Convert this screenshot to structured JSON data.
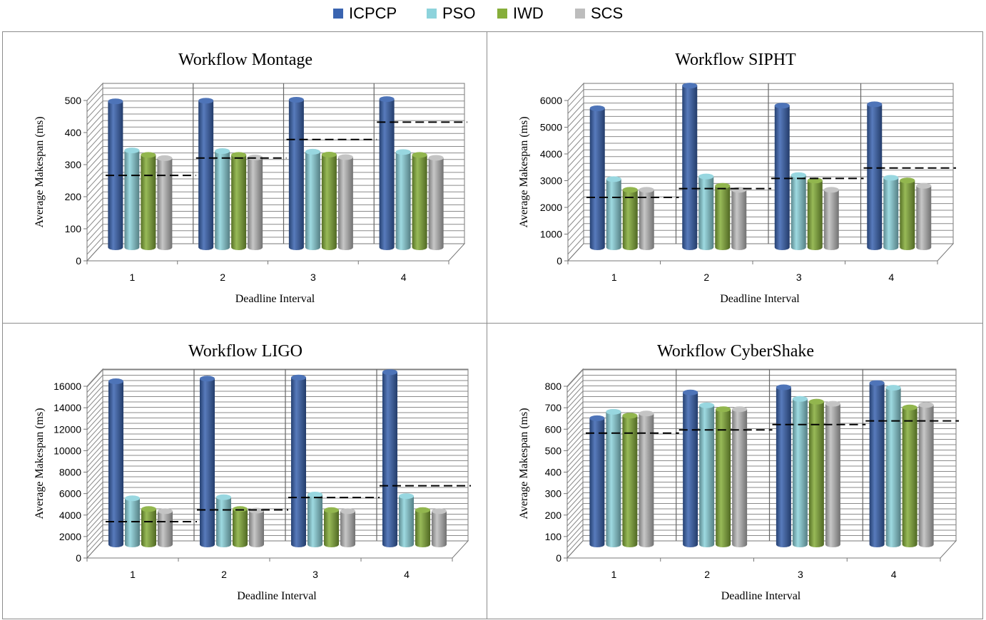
{
  "legend": {
    "items": [
      {
        "label": "ICPCP",
        "color": "#3a64b0"
      },
      {
        "label": "PSO",
        "color": "#8dd3dc"
      },
      {
        "label": "IWD",
        "color": "#86ae3a"
      },
      {
        "label": "SCS",
        "color": "#bdbdbd"
      }
    ]
  },
  "chart_data": [
    {
      "type": "bar",
      "title": "Workflow Montage",
      "xlabel": "Deadline Interval",
      "ylabel": "Average Makespan (ms)",
      "categories": [
        "1",
        "2",
        "3",
        "4"
      ],
      "ylim": [
        0,
        500
      ],
      "yticks": [
        0,
        100,
        200,
        300,
        400,
        500
      ],
      "series": [
        {
          "name": "ICPCP",
          "values": [
            455,
            457,
            460,
            462
          ]
        },
        {
          "name": "PSO",
          "values": [
            302,
            300,
            298,
            297
          ]
        },
        {
          "name": "IWD",
          "values": [
            288,
            288,
            289,
            288
          ]
        },
        {
          "name": "SCS",
          "values": [
            278,
            280,
            281,
            279
          ]
        }
      ],
      "deadlines": [
        262,
        316,
        374,
        428
      ]
    },
    {
      "type": "bar",
      "title": "Workflow SIPHT",
      "xlabel": "Deadline Interval",
      "ylabel": "Average Makespan (ms)",
      "categories": [
        "1",
        "2",
        "3",
        "4"
      ],
      "ylim": [
        0,
        6000
      ],
      "yticks": [
        0,
        1000,
        2000,
        3000,
        4000,
        5000,
        6000
      ],
      "series": [
        {
          "name": "ICPCP",
          "values": [
            5200,
            6050,
            5300,
            5350
          ]
        },
        {
          "name": "PSO",
          "values": [
            2550,
            2650,
            2700,
            2600
          ]
        },
        {
          "name": "IWD",
          "values": [
            2150,
            2300,
            2500,
            2500
          ]
        },
        {
          "name": "SCS",
          "values": [
            2150,
            2150,
            2150,
            2300
          ]
        }
      ],
      "deadlines": [
        2320,
        2650,
        3030,
        3420
      ]
    },
    {
      "type": "bar",
      "title": "Workflow LIGO",
      "xlabel": "Deadline Interval",
      "ylabel": "Average Makespan (ms)",
      "categories": [
        "1",
        "2",
        "3",
        "4"
      ],
      "ylim": [
        0,
        16000
      ],
      "yticks": [
        0,
        2000,
        4000,
        6000,
        8000,
        10000,
        12000,
        14000,
        16000
      ],
      "series": [
        {
          "name": "ICPCP",
          "values": [
            15200,
            15450,
            15550,
            16050
          ]
        },
        {
          "name": "PSO",
          "values": [
            4300,
            4400,
            4650,
            4500
          ]
        },
        {
          "name": "IWD",
          "values": [
            3300,
            3300,
            3200,
            3200
          ]
        },
        {
          "name": "SCS",
          "values": [
            3100,
            3150,
            3100,
            3100
          ]
        }
      ],
      "deadlines": [
        3250,
        4350,
        5500,
        6600
      ]
    },
    {
      "type": "bar",
      "title": "Workflow CyberShake",
      "xlabel": "Deadline Interval",
      "ylabel": "Average Makespan (ms)",
      "categories": [
        "1",
        "2",
        "3",
        "4"
      ],
      "ylim": [
        0,
        800
      ],
      "yticks": [
        0,
        100,
        200,
        300,
        400,
        500,
        600,
        700,
        800
      ],
      "series": [
        {
          "name": "ICPCP",
          "values": [
            588,
            708,
            732,
            752
          ]
        },
        {
          "name": "PSO",
          "values": [
            618,
            648,
            678,
            730
          ]
        },
        {
          "name": "IWD",
          "values": [
            600,
            630,
            665,
            638
          ]
        },
        {
          "name": "SCS",
          "values": [
            610,
            630,
            655,
            650
          ]
        }
      ],
      "deadlines": [
        575,
        590,
        615,
        632
      ]
    }
  ]
}
